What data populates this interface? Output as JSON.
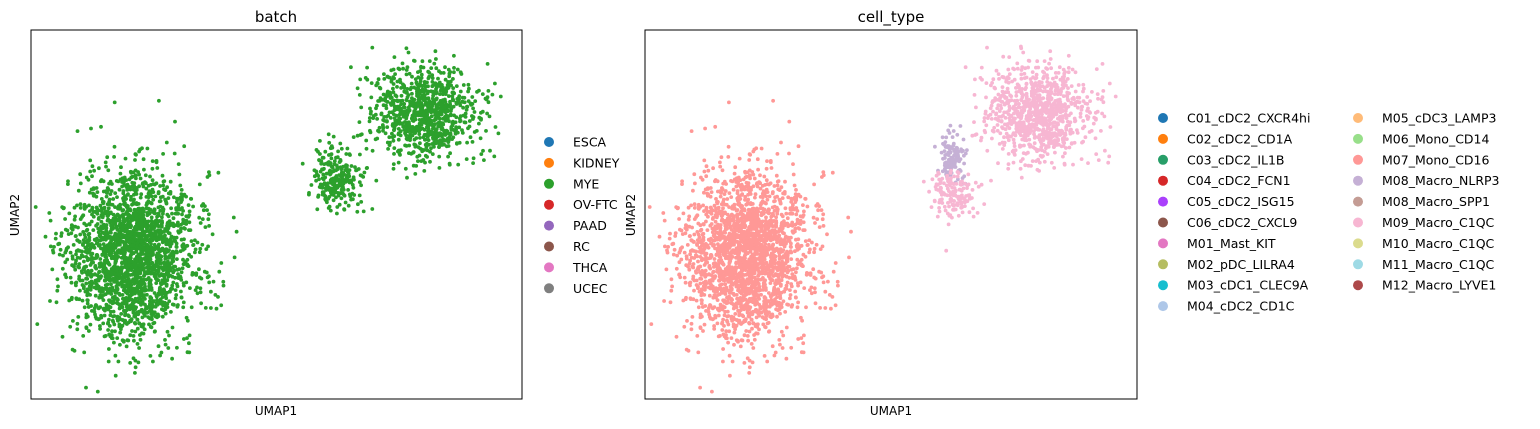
{
  "chart_data": [
    {
      "type": "scatter",
      "title": "batch",
      "xlabel": "UMAP1",
      "ylabel": "UMAP2",
      "ticks": false,
      "legend_placement": "right",
      "legend": [
        {
          "name": "ESCA",
          "color": "#1f77b4"
        },
        {
          "name": "KIDNEY",
          "color": "#ff7f0e"
        },
        {
          "name": "MYE",
          "color": "#2ca02c"
        },
        {
          "name": "OV-FTC",
          "color": "#d62728"
        },
        {
          "name": "PAAD",
          "color": "#9467bd"
        },
        {
          "name": "RC",
          "color": "#8c564b"
        },
        {
          "name": "THCA",
          "color": "#e377c2"
        },
        {
          "name": "UCEC",
          "color": "#7f7f7f"
        }
      ],
      "series": [
        {
          "name": "MYE",
          "color": "#2ca02c",
          "regions": [
            {
              "label": "large cluster",
              "center": [
                -4.2,
                -1.5
              ],
              "spread": [
                1.7,
                2.4
              ],
              "approx_points": 2300
            },
            {
              "label": "bridge",
              "center": [
                1.5,
                0.8
              ],
              "spread": [
                0.7,
                0.9
              ],
              "approx_points": 250
            },
            {
              "label": "upper-right arm",
              "center": [
                3.9,
                2.7
              ],
              "spread": [
                1.4,
                1.4
              ],
              "approx_points": 900
            }
          ]
        }
      ]
    },
    {
      "type": "scatter",
      "title": "cell_type",
      "xlabel": "UMAP1",
      "ylabel": "UMAP2",
      "ticks": false,
      "legend_placement": "right",
      "legend_columns": 2,
      "legend": [
        {
          "name": "C01_cDC2_CXCR4hi",
          "color": "#1f77b4"
        },
        {
          "name": "C02_cDC2_CD1A",
          "color": "#ff7f0e"
        },
        {
          "name": "C03_cDC2_IL1B",
          "color": "#279e68"
        },
        {
          "name": "C04_cDC2_FCN1",
          "color": "#d62728"
        },
        {
          "name": "C05_cDC2_ISG15",
          "color": "#aa40fc"
        },
        {
          "name": "C06_cDC2_CXCL9",
          "color": "#8c564b"
        },
        {
          "name": "M01_Mast_KIT",
          "color": "#e377c2"
        },
        {
          "name": "M02_pDC_LILRA4",
          "color": "#b5bd61"
        },
        {
          "name": "M03_cDC1_CLEC9A",
          "color": "#17becf"
        },
        {
          "name": "M04_cDC2_CD1C",
          "color": "#aec7e8"
        },
        {
          "name": "M05_cDC3_LAMP3",
          "color": "#ffbb78"
        },
        {
          "name": "M06_Mono_CD14",
          "color": "#98df8a"
        },
        {
          "name": "M07_Mono_CD16",
          "color": "#ff9896"
        },
        {
          "name": "M08_Macro_NLRP3",
          "color": "#c5b0d5"
        },
        {
          "name": "M08_Macro_SPP1",
          "color": "#c49c94"
        },
        {
          "name": "M09_Macro_C1QC",
          "color": "#f7b6d2"
        },
        {
          "name": "M10_Macro_C1QC",
          "color": "#dbdb8d"
        },
        {
          "name": "M11_Macro_C1QC",
          "color": "#9edae5"
        },
        {
          "name": "M12_Macro_LYVE1",
          "color": "#ad494a"
        }
      ],
      "series": [
        {
          "name": "M07_Mono_CD16",
          "color": "#ff9896",
          "regions": [
            {
              "label": "large cluster",
              "center": [
                -4.2,
                -1.5
              ],
              "spread": [
                1.7,
                2.4
              ],
              "approx_points": 2300
            }
          ]
        },
        {
          "name": "M08_Macro_NLRP3",
          "color": "#c5b0d5",
          "regions": [
            {
              "label": "bridge top",
              "center": [
                1.5,
                1.4
              ],
              "spread": [
                0.35,
                0.7
              ],
              "approx_points": 120
            }
          ]
        },
        {
          "name": "M09_Macro_C1QC",
          "color": "#f7b6d2",
          "regions": [
            {
              "label": "upper-right arm",
              "center": [
                3.9,
                2.7
              ],
              "spread": [
                1.4,
                1.4
              ],
              "approx_points": 900
            },
            {
              "label": "bridge",
              "center": [
                1.5,
                0.3
              ],
              "spread": [
                0.6,
                0.7
              ],
              "approx_points": 150
            }
          ]
        }
      ]
    }
  ]
}
